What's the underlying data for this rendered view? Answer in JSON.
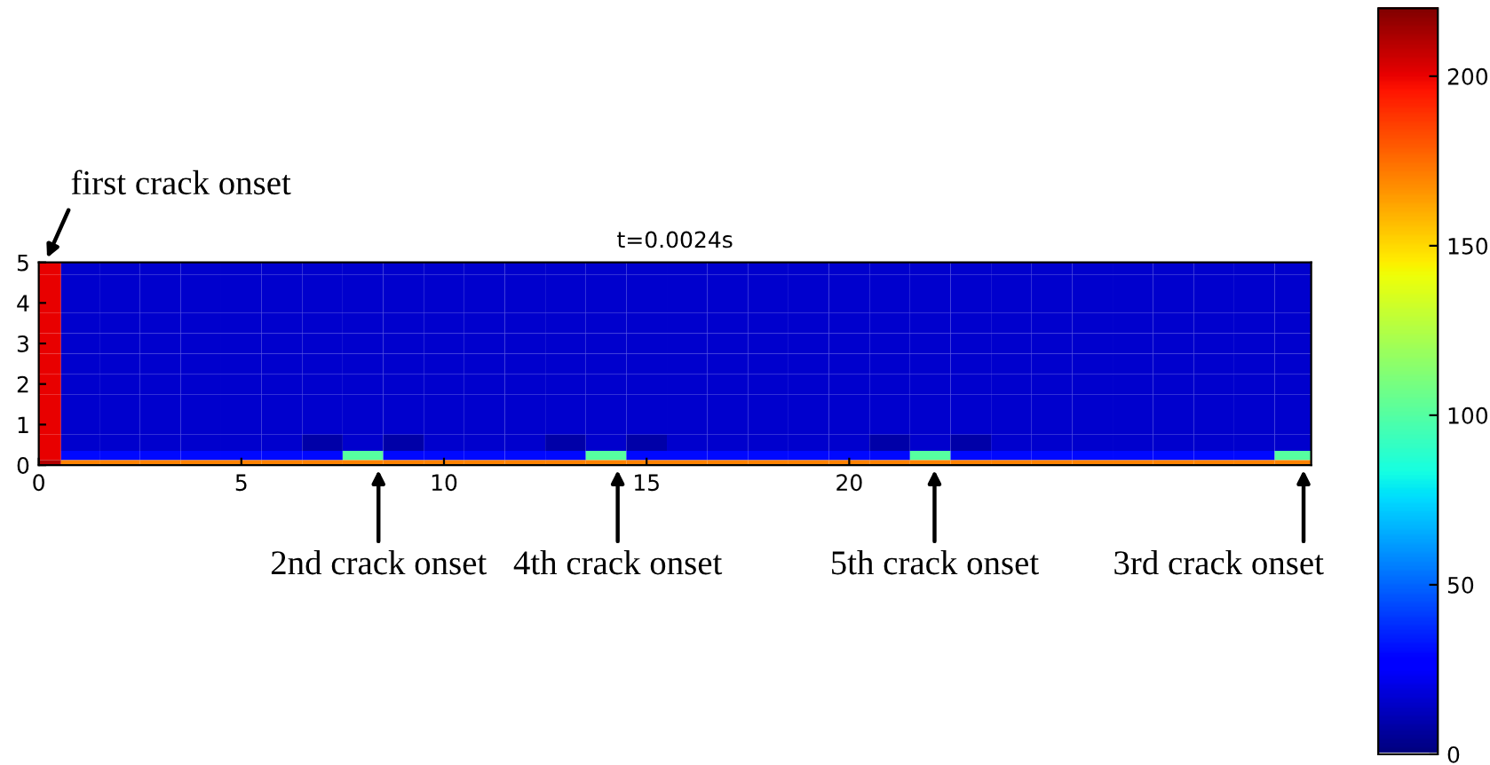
{
  "chart_data": {
    "type": "heatmap",
    "title": "t=0.0024s",
    "x": [
      0.1,
      1,
      2,
      3,
      4,
      5,
      6,
      7,
      8,
      9,
      10,
      11,
      12,
      13,
      14,
      15,
      16,
      17,
      18,
      19,
      20,
      21,
      22,
      23,
      24,
      25,
      26,
      27,
      28,
      29,
      30,
      31
    ],
    "y": [
      4.9,
      4.5,
      4,
      3.5,
      3,
      2.5,
      2,
      1.5,
      1,
      0.5,
      0.2,
      0.05
    ],
    "xlim": [
      0,
      31.4
    ],
    "ylim": [
      0,
      5
    ],
    "xticks": [
      0,
      5,
      10,
      15,
      20
    ],
    "yticks": [
      0,
      1,
      2,
      3,
      4,
      5
    ],
    "clim": [
      0,
      220
    ],
    "cticks": [
      0,
      50,
      100,
      150,
      200
    ],
    "cells": [
      [
        200,
        15,
        15,
        15,
        15,
        15,
        15,
        15,
        15,
        15,
        15,
        15,
        15,
        15,
        15,
        15,
        15,
        15,
        15,
        15,
        15,
        15,
        15,
        15,
        15,
        15,
        15,
        15,
        15,
        15,
        15,
        15
      ],
      [
        200,
        15,
        15,
        15,
        15,
        15,
        15,
        15,
        15,
        15,
        15,
        15,
        15,
        15,
        15,
        15,
        15,
        15,
        15,
        15,
        15,
        15,
        15,
        15,
        15,
        15,
        15,
        15,
        15,
        15,
        15,
        15
      ],
      [
        200,
        15,
        15,
        15,
        15,
        15,
        15,
        15,
        15,
        15,
        15,
        15,
        15,
        15,
        15,
        15,
        15,
        15,
        15,
        15,
        15,
        15,
        15,
        15,
        15,
        15,
        15,
        15,
        15,
        15,
        15,
        15
      ],
      [
        200,
        15,
        15,
        15,
        15,
        15,
        15,
        15,
        15,
        15,
        15,
        15,
        15,
        15,
        15,
        15,
        15,
        15,
        15,
        15,
        15,
        15,
        15,
        15,
        15,
        15,
        15,
        15,
        15,
        15,
        15,
        15
      ],
      [
        200,
        15,
        15,
        15,
        15,
        15,
        15,
        15,
        15,
        15,
        15,
        15,
        15,
        15,
        15,
        15,
        15,
        15,
        15,
        15,
        15,
        15,
        15,
        15,
        15,
        15,
        15,
        15,
        15,
        15,
        15,
        15
      ],
      [
        200,
        15,
        15,
        15,
        15,
        15,
        15,
        15,
        15,
        15,
        15,
        15,
        15,
        15,
        15,
        15,
        15,
        15,
        15,
        15,
        15,
        15,
        15,
        15,
        15,
        15,
        15,
        15,
        15,
        15,
        15,
        15
      ],
      [
        200,
        15,
        15,
        15,
        15,
        15,
        15,
        15,
        15,
        15,
        15,
        15,
        15,
        15,
        15,
        15,
        15,
        15,
        15,
        15,
        15,
        15,
        15,
        15,
        15,
        15,
        15,
        15,
        15,
        15,
        15,
        15
      ],
      [
        200,
        15,
        15,
        15,
        15,
        15,
        15,
        15,
        15,
        15,
        15,
        15,
        15,
        15,
        15,
        15,
        15,
        15,
        15,
        15,
        15,
        15,
        15,
        15,
        15,
        15,
        15,
        15,
        15,
        15,
        15,
        15
      ],
      [
        200,
        15,
        15,
        15,
        15,
        15,
        15,
        15,
        15,
        15,
        15,
        15,
        15,
        15,
        15,
        15,
        15,
        15,
        15,
        15,
        15,
        15,
        15,
        15,
        15,
        15,
        15,
        15,
        15,
        15,
        15,
        15
      ],
      [
        200,
        15,
        15,
        15,
        15,
        15,
        15,
        8,
        15,
        8,
        15,
        15,
        15,
        8,
        15,
        8,
        15,
        15,
        15,
        15,
        15,
        8,
        15,
        8,
        15,
        15,
        15,
        15,
        15,
        15,
        15,
        15
      ],
      [
        200,
        30,
        30,
        30,
        30,
        30,
        30,
        30,
        100,
        30,
        30,
        30,
        30,
        30,
        100,
        30,
        30,
        30,
        30,
        30,
        30,
        30,
        100,
        30,
        30,
        30,
        30,
        30,
        30,
        30,
        30,
        100
      ],
      [
        210,
        170,
        170,
        170,
        170,
        170,
        170,
        170,
        170,
        170,
        170,
        170,
        170,
        170,
        170,
        170,
        170,
        170,
        170,
        170,
        170,
        170,
        170,
        170,
        170,
        170,
        170,
        170,
        170,
        170,
        170,
        170
      ]
    ],
    "annotations": [
      "first crack onset",
      "2nd crack onset",
      "4th crack onset",
      "5th crack onset",
      "3rd crack onset"
    ]
  }
}
